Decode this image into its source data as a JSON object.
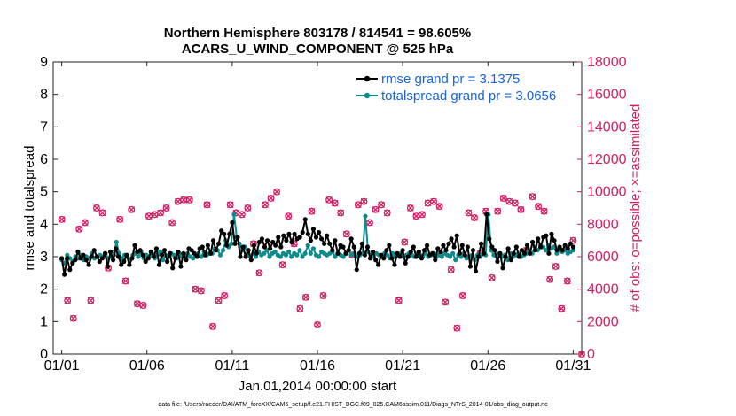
{
  "chart_data": {
    "type": "line",
    "title_line1": "Northern Hemisphere 803178 / 814541 = 98.605%",
    "title_line2": "ACARS_U_WIND_COMPONENT @ 525 hPa",
    "xlabel": "Jan.01,2014 00:00:00 start",
    "ylabel_left": "rmse and totalspread",
    "ylabel_right": "# of obs: o=possible; ×=assimilated",
    "footnote": "data file: /Users/raeder/DAI/ATM_forcXX/CAM6_setup/f.e21.FHIST_BGC.f09_025.CAM6assim.011/Diags_NTrS_2014-01/obs_diag_output.nc",
    "xlim": [
      0.5,
      31.5
    ],
    "xticks": [
      1,
      6,
      11,
      16,
      21,
      26,
      31
    ],
    "xtick_labels": [
      "01/01",
      "01/06",
      "01/11",
      "01/16",
      "01/21",
      "01/26",
      "01/31"
    ],
    "ylim_left": [
      0,
      9
    ],
    "yticks_left": [
      "0",
      "1",
      "2",
      "3",
      "4",
      "5",
      "6",
      "7",
      "8",
      "9"
    ],
    "ylim_right": [
      0,
      18000
    ],
    "yticks_right": [
      "0",
      "2000",
      "4000",
      "6000",
      "8000",
      "10000",
      "12000",
      "14000",
      "16000",
      "18000"
    ],
    "colors": {
      "rmse": "#000000",
      "spread": "#0d8a8a",
      "obs": "#d11e63",
      "legend_text": "#1565e0"
    },
    "series": [
      {
        "name": "rmse grand pr = 3.1375",
        "key": "rmse",
        "values": [
          2.95,
          2.45,
          2.95,
          2.6,
          2.8,
          2.9,
          3.15,
          2.95,
          3.05,
          2.9,
          2.75,
          3.0,
          3.2,
          3.0,
          2.85,
          2.95,
          3.1,
          2.7,
          3.15,
          2.9,
          3.25,
          3.0,
          2.75,
          2.85,
          3.05,
          2.75,
          2.95,
          3.35,
          3.15,
          3.2,
          3.05,
          2.85,
          2.95,
          3.15,
          3.0,
          3.25,
          2.75,
          3.05,
          3.2,
          2.85,
          3.1,
          2.65,
          2.95,
          3.15,
          2.7,
          3.1,
          2.9,
          3.25,
          3.2,
          3.1,
          3.0,
          3.25,
          3.3,
          3.05,
          3.35,
          3.1,
          3.5,
          3.2,
          3.4,
          3.8,
          3.7,
          3.35,
          3.7,
          4.05,
          3.4,
          3.6,
          3.0,
          3.3,
          3.0,
          3.2,
          2.9,
          3.35,
          3.1,
          3.45,
          3.55,
          3.3,
          3.5,
          3.25,
          3.45,
          3.35,
          3.6,
          3.3,
          3.65,
          3.5,
          3.7,
          3.45,
          3.7,
          3.55,
          3.6,
          3.75,
          4.15,
          3.7,
          3.5,
          3.85,
          3.6,
          3.75,
          3.55,
          3.4,
          3.65,
          3.4,
          3.2,
          3.5,
          3.1,
          3.35,
          3.3,
          3.1,
          3.2,
          3.55,
          3.3,
          2.6,
          3.1,
          3.4,
          3.05,
          3.3,
          2.95,
          3.15,
          2.9,
          2.75,
          3.05,
          2.95,
          3.2,
          3.35,
          2.95,
          2.75,
          3.1,
          3.0,
          3.2,
          2.8,
          3.0,
          3.15,
          3.3,
          3.0,
          3.15,
          2.95,
          3.2,
          3.35,
          3.05,
          3.1,
          2.9,
          3.25,
          3.15,
          3.35,
          3.2,
          3.4,
          3.55,
          3.3,
          3.65,
          3.1,
          3.35,
          3.05,
          3.3,
          2.7,
          3.2,
          2.55,
          3.0,
          3.4,
          3.1,
          4.3,
          3.55,
          3.3,
          3.2,
          2.85,
          3.1,
          2.65,
          3.0,
          3.25,
          2.9,
          3.1,
          3.3,
          3.0,
          3.2,
          3.1,
          3.35,
          3.1,
          3.45,
          3.2,
          3.55,
          3.3,
          3.6,
          3.65,
          3.1,
          3.7,
          3.5,
          3.2,
          3.3,
          3.2,
          3.35,
          3.25,
          3.4,
          3.3
        ]
      },
      {
        "name": "totalspread grand pr = 3.0656",
        "key": "spread",
        "values": [
          2.9,
          2.8,
          3.05,
          2.95,
          2.85,
          3.0,
          2.95,
          3.05,
          2.9,
          3.0,
          2.95,
          3.1,
          2.95,
          3.0,
          3.05,
          3.0,
          3.1,
          2.95,
          3.0,
          3.05,
          3.45,
          3.1,
          2.95,
          3.05,
          3.0,
          2.9,
          3.05,
          3.1,
          3.0,
          3.15,
          2.95,
          3.05,
          3.0,
          3.1,
          2.95,
          3.05,
          3.15,
          2.9,
          3.05,
          3.0,
          3.1,
          3.05,
          2.95,
          3.1,
          3.0,
          3.05,
          3.1,
          3.0,
          2.95,
          3.05,
          3.1,
          3.0,
          3.15,
          3.05,
          3.1,
          3.1,
          3.25,
          3.2,
          3.05,
          3.2,
          3.5,
          3.3,
          3.4,
          4.3,
          3.6,
          3.4,
          3.2,
          3.3,
          3.1,
          3.0,
          3.1,
          3.0,
          3.15,
          3.05,
          3.1,
          3.2,
          3.0,
          3.1,
          3.15,
          3.05,
          3.0,
          3.1,
          3.05,
          3.15,
          3.0,
          3.1,
          3.05,
          3.2,
          3.0,
          3.1,
          3.35,
          3.1,
          3.25,
          3.05,
          3.0,
          3.15,
          3.1,
          3.05,
          3.1,
          3.15,
          3.0,
          3.1,
          3.05,
          3.0,
          3.1,
          3.2,
          3.05,
          3.1,
          3.0,
          3.05,
          3.1,
          4.25,
          3.15,
          3.05,
          3.0,
          3.1,
          3.05,
          3.0,
          3.1,
          3.05,
          2.95,
          3.1,
          3.0,
          3.05,
          3.1,
          3.0,
          3.05,
          3.1,
          3.05,
          3.0,
          3.1,
          3.05,
          3.0,
          3.1,
          3.0,
          3.05,
          3.1,
          3.0,
          3.05,
          3.0,
          3.1,
          3.05,
          3.0,
          3.1,
          2.9,
          3.05,
          3.0,
          3.1,
          2.95,
          3.0,
          3.05,
          2.9,
          3.05,
          3.0,
          3.1,
          3.05,
          4.3,
          3.2,
          3.05,
          3.0,
          3.1,
          3.0,
          3.05,
          2.9,
          3.1,
          3.0,
          3.05,
          3.1,
          3.0,
          3.05,
          3.1,
          3.2,
          3.1,
          3.3,
          3.2,
          3.35,
          3.3,
          3.2,
          3.35,
          3.25,
          3.3,
          3.1,
          3.2,
          3.15,
          3.2,
          3.1,
          3.15,
          3.2
        ]
      }
    ],
    "obs_possible": [
      8300,
      3300,
      2200,
      7700,
      8100,
      3300,
      9000,
      8700,
      5300,
      6200,
      8300,
      4500,
      8900,
      3100,
      3000,
      8500,
      8600,
      8700,
      9000,
      8100,
      9400,
      9500,
      9500,
      4000,
      3900,
      9200,
      1700,
      3300,
      3600,
      9200,
      8700,
      8600,
      9000,
      6800,
      5000,
      9200,
      9600,
      10000,
      5500,
      8500,
      6800,
      2800,
      3500,
      8800,
      1800,
      3600,
      9500,
      9300,
      8700,
      7400,
      6100,
      9200,
      9400,
      8100,
      8900,
      9200,
      8700,
      6100,
      3300,
      6900,
      9000,
      8500,
      8600,
      9300,
      9400,
      9100,
      3200,
      5200,
      1600,
      3600,
      8700,
      8400,
      6200,
      8800,
      4700,
      8800,
      9600,
      9400,
      9300,
      8900,
      6400,
      9700,
      9100,
      8800,
      4600,
      5400,
      2800,
      4500,
      7000
    ],
    "obs_assimilated": [
      8300,
      3300,
      2200,
      7700,
      8100,
      3300,
      9000,
      8700,
      5300,
      6200,
      8300,
      4500,
      8900,
      3100,
      3000,
      8500,
      8600,
      8700,
      9000,
      8100,
      9400,
      9500,
      9500,
      4000,
      3900,
      9200,
      1700,
      3300,
      3600,
      9200,
      8700,
      8600,
      9000,
      6800,
      5000,
      9200,
      9600,
      10000,
      5500,
      8500,
      6800,
      2800,
      3500,
      8800,
      1800,
      3600,
      9500,
      9300,
      8700,
      7400,
      6100,
      9200,
      9400,
      8100,
      8900,
      9200,
      8700,
      6100,
      3300,
      6900,
      9000,
      8500,
      8600,
      9300,
      9400,
      9100,
      3200,
      5200,
      1600,
      3600,
      8700,
      8400,
      6200,
      8800,
      4700,
      8800,
      9600,
      9400,
      9300,
      8900,
      6400,
      9700,
      9100,
      8800,
      4600,
      5400,
      2800,
      4500,
      7000
    ]
  }
}
